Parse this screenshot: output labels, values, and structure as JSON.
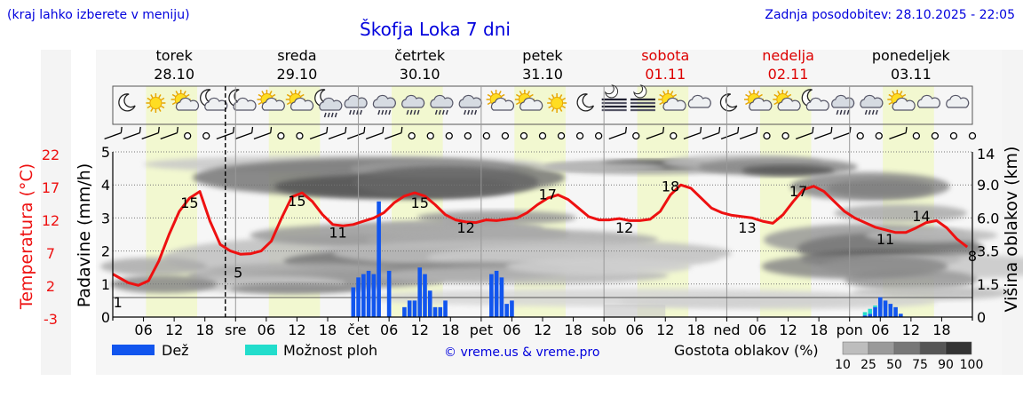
{
  "header": {
    "region_hint": "(kraj lahko izberete v meniju)",
    "title": "Škofja Loka 7 dni",
    "updated": "Zadnja posodobitev: 28.10.2025 - 22:05"
  },
  "days": [
    {
      "name": "torek",
      "date": "28.10",
      "weekend": false
    },
    {
      "name": "sreda",
      "date": "29.10",
      "weekend": false
    },
    {
      "name": "četrtek",
      "date": "30.10",
      "weekend": false
    },
    {
      "name": "petek",
      "date": "31.10",
      "weekend": false
    },
    {
      "name": "sobota",
      "date": "01.11",
      "weekend": true
    },
    {
      "name": "nedelja",
      "date": "02.11",
      "weekend": true
    },
    {
      "name": "ponedeljek",
      "date": "03.11",
      "weekend": false
    }
  ],
  "weather_icons": [
    "moon",
    "sun",
    "sun-cloud",
    "moon-cloud",
    "moon-cloud",
    "sun-cloud",
    "sun-cloud",
    "moon-cloud-rain",
    "cloud-rain",
    "cloud-rain",
    "cloud-rain",
    "cloud-rain",
    "cloud-rain",
    "cloud-sun",
    "sun-cloud",
    "sun",
    "moon",
    "fog",
    "fog",
    "sun-cloud",
    "cloud",
    "moon",
    "sun-cloud",
    "sun-cloud",
    "moon-cloud",
    "cloud-rain",
    "cloud-rain",
    "cloud-sun",
    "cloud",
    "cloud"
  ],
  "axes": {
    "left_title": "Temperatura (°C)",
    "left_ticks": [
      "22",
      "17",
      "12",
      "7",
      "2",
      "-3"
    ],
    "precip_title": "Padavine (mm/h)",
    "precip_ticks": [
      "5",
      "4",
      "3",
      "2",
      "1",
      "0"
    ],
    "right_title": "Višina oblakov (km)",
    "right_ticks": [
      "14",
      "9.0",
      "6.0",
      "3.5",
      "1.5",
      "0"
    ],
    "x_labels": [
      {
        "hour": 6,
        "text": "06"
      },
      {
        "hour": 12,
        "text": "12"
      },
      {
        "hour": 18,
        "text": "18"
      },
      {
        "hour": 24,
        "text": "sre"
      },
      {
        "hour": 30,
        "text": "06"
      },
      {
        "hour": 36,
        "text": "12"
      },
      {
        "hour": 42,
        "text": "18"
      },
      {
        "hour": 48,
        "text": "čet"
      },
      {
        "hour": 54,
        "text": "06"
      },
      {
        "hour": 60,
        "text": "12"
      },
      {
        "hour": 66,
        "text": "18"
      },
      {
        "hour": 72,
        "text": "pet"
      },
      {
        "hour": 78,
        "text": "06"
      },
      {
        "hour": 84,
        "text": "12"
      },
      {
        "hour": 90,
        "text": "18"
      },
      {
        "hour": 96,
        "text": "sob"
      },
      {
        "hour": 102,
        "text": "06"
      },
      {
        "hour": 108,
        "text": "12"
      },
      {
        "hour": 114,
        "text": "18"
      },
      {
        "hour": 120,
        "text": "ned"
      },
      {
        "hour": 126,
        "text": "06"
      },
      {
        "hour": 132,
        "text": "12"
      },
      {
        "hour": 138,
        "text": "18"
      },
      {
        "hour": 144,
        "text": "pon"
      },
      {
        "hour": 150,
        "text": "06"
      },
      {
        "hour": 156,
        "text": "12"
      },
      {
        "hour": 162,
        "text": "18"
      }
    ]
  },
  "legend": {
    "rain": "Dež",
    "shower": "Možnost ploh",
    "credit": "© vreme.us & vreme.pro",
    "cloud_title": "Gostota oblakov (%)",
    "cloud_levels": [
      "10",
      "25",
      "50",
      "75",
      "90",
      "100"
    ]
  },
  "colors": {
    "temp_line": "#ee1111",
    "rain": "#1155ee",
    "shower": "#22ddcc",
    "weekend": "#dd0000",
    "title": "#0000dd",
    "daylight": "#f2f8d0"
  },
  "chart_data": {
    "type": "line",
    "title": "Škofja Loka 7 dni",
    "x_unit": "hours from 28.10 00:00",
    "xlim": [
      0,
      168
    ],
    "now_hour": 22,
    "daylight_hours": [
      [
        6.5,
        16.5
      ],
      [
        30.5,
        40.5
      ],
      [
        54.5,
        64.5
      ],
      [
        78.5,
        88.5
      ],
      [
        102.5,
        112.5
      ],
      [
        126.5,
        136.5
      ],
      [
        150.5,
        160.5
      ]
    ],
    "temperature": {
      "name": "Temperatura (°C)",
      "ylim": [
        -3,
        22
      ],
      "x": [
        0,
        3,
        5,
        7,
        9,
        11,
        13,
        15,
        17,
        19,
        21,
        23,
        25,
        27,
        29,
        31,
        33,
        35,
        37,
        39,
        41,
        43,
        45,
        47,
        49,
        51,
        53,
        55,
        57,
        59,
        61,
        63,
        65,
        67,
        69,
        71,
        73,
        75,
        77,
        79,
        81,
        83,
        85,
        87,
        89,
        91,
        93,
        95,
        97,
        99,
        101,
        103,
        105,
        107,
        109,
        111,
        113,
        115,
        117,
        119,
        121,
        123,
        125,
        127,
        129,
        131,
        133,
        135,
        137,
        139,
        141,
        143,
        145,
        147,
        149,
        151,
        153,
        155,
        157,
        159,
        161,
        163,
        165,
        167
      ],
      "y": [
        3.5,
        2.2,
        1.8,
        2.5,
        5.5,
        9.5,
        13.0,
        15.0,
        16.0,
        11.5,
        8.0,
        7.0,
        6.5,
        6.6,
        7.0,
        8.5,
        12.0,
        15.2,
        15.8,
        14.5,
        12.5,
        11.0,
        10.8,
        11.0,
        11.5,
        12.0,
        12.8,
        14.3,
        15.3,
        15.8,
        15.3,
        14.0,
        12.5,
        11.7,
        11.4,
        11.3,
        11.7,
        11.6,
        11.8,
        12.0,
        12.8,
        14.0,
        15.0,
        15.5,
        14.8,
        13.5,
        12.2,
        11.7,
        11.7,
        11.9,
        11.6,
        11.6,
        11.8,
        13.0,
        15.5,
        17.0,
        16.5,
        15.0,
        13.5,
        12.8,
        12.4,
        12.2,
        12.0,
        11.5,
        11.2,
        12.5,
        14.5,
        16.3,
        16.8,
        16.0,
        14.5,
        13.0,
        12.0,
        11.3,
        10.6,
        10.2,
        9.8,
        9.8,
        10.5,
        11.3,
        11.6,
        10.5,
        8.8,
        7.6
      ]
    },
    "temperature_labels": [
      {
        "x": 1,
        "y": -1.5,
        "text": "1"
      },
      {
        "x": 15,
        "y": 13.5,
        "text": "15"
      },
      {
        "x": 24.5,
        "y": 3.0,
        "text": "5"
      },
      {
        "x": 36,
        "y": 13.8,
        "text": "15"
      },
      {
        "x": 44,
        "y": 9.0,
        "text": "11"
      },
      {
        "x": 60,
        "y": 13.5,
        "text": "15"
      },
      {
        "x": 69,
        "y": 9.8,
        "text": "12"
      },
      {
        "x": 85,
        "y": 14.8,
        "text": "17"
      },
      {
        "x": 100,
        "y": 9.8,
        "text": "12"
      },
      {
        "x": 109,
        "y": 16.0,
        "text": "18"
      },
      {
        "x": 124,
        "y": 9.8,
        "text": "13"
      },
      {
        "x": 134,
        "y": 15.3,
        "text": "17"
      },
      {
        "x": 151,
        "y": 8.0,
        "text": "11"
      },
      {
        "x": 158,
        "y": 11.5,
        "text": "14"
      },
      {
        "x": 168,
        "y": 5.5,
        "text": "8"
      }
    ],
    "precipitation": {
      "name": "Padavine (mm/h)",
      "ylim": [
        0,
        5
      ],
      "x": [
        47,
        48,
        49,
        50,
        51,
        52,
        54,
        57,
        58,
        59,
        60,
        61,
        62,
        63,
        64,
        65,
        74,
        75,
        76,
        77,
        78,
        147,
        148,
        149,
        150,
        151,
        152,
        153,
        154
      ],
      "rain": [
        0.9,
        1.2,
        1.3,
        1.4,
        1.3,
        3.5,
        1.4,
        0.3,
        0.5,
        0.5,
        1.5,
        1.3,
        0.8,
        0.3,
        0.3,
        0.5,
        1.3,
        1.4,
        1.2,
        0.4,
        0.5,
        0.05,
        0.1,
        0.3,
        0.6,
        0.5,
        0.4,
        0.3,
        0.1
      ],
      "shower": [
        0,
        0,
        0,
        0,
        0,
        0,
        0,
        0,
        0,
        0,
        0,
        0,
        0,
        0,
        0,
        0,
        0,
        0,
        0,
        0,
        0,
        0.1,
        0.15,
        0.05,
        0,
        0,
        0,
        0,
        0
      ]
    },
    "cloud_height_km_ticks": [
      0,
      1.5,
      3.5,
      6.0,
      9.0,
      14
    ]
  }
}
